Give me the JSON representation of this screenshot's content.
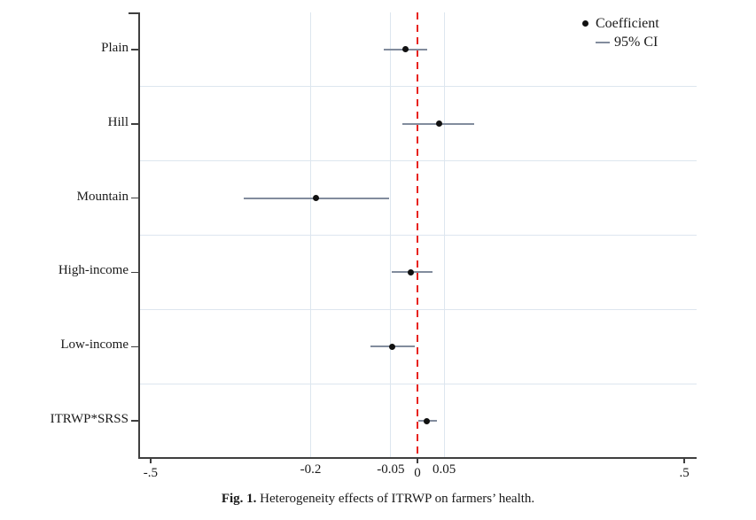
{
  "figure": {
    "caption": {
      "label": "Fig. 1.",
      "text": "Heterogeneity effects of ITRWP on farmers’ health."
    }
  },
  "legend": {
    "position": "top-right",
    "coefficient_label": "Coefficient",
    "ci_label": "95% CI",
    "ci_marker": "—",
    "coefficient_marker": "dot"
  },
  "colors": {
    "coefficient_dot": "#111111",
    "ci_line": "#828c9d",
    "zero_line": "#e8231f",
    "gridline": "#dde6ef",
    "axis": "#3f3f3f",
    "text": "#1a1a1a",
    "background": "#ffffff"
  },
  "chart_data": {
    "type": "scatter",
    "subtype": "horizontal-coefficient-plot-with-95ci",
    "title": "",
    "xlabel": "",
    "ylabel": "",
    "grid": "on",
    "xlim": [
      -0.523,
      0.523
    ],
    "reference_line_x": 0,
    "categories": [
      "Plain",
      "Hill",
      "Mountain",
      "High-income",
      "Low-income",
      "ITRWP*SRSS"
    ],
    "rows": [
      {
        "category": "Plain",
        "coefficient": -0.023,
        "ci_low": -0.063,
        "ci_high": 0.018
      },
      {
        "category": "Hill",
        "coefficient": 0.04,
        "ci_low": -0.028,
        "ci_high": 0.106
      },
      {
        "category": "Mountain",
        "coefficient": -0.19,
        "ci_low": -0.326,
        "ci_high": -0.053
      },
      {
        "category": "High-income",
        "coefficient": -0.012,
        "ci_low": -0.048,
        "ci_high": 0.028
      },
      {
        "category": "Low-income",
        "coefficient": -0.048,
        "ci_low": -0.088,
        "ci_high": -0.005
      },
      {
        "category": "ITRWP*SRSS",
        "coefficient": 0.018,
        "ci_low": 0.002,
        "ci_high": 0.037
      }
    ],
    "x_axis_ticks": [
      {
        "value": -0.5,
        "label": "-.5",
        "tick": true,
        "gridline": false
      },
      {
        "value": -0.2,
        "label": "-0.2",
        "tick": false,
        "gridline": true
      },
      {
        "value": -0.05,
        "label": "-0.05",
        "tick": false,
        "gridline": true
      },
      {
        "value": 0,
        "label": "0",
        "tick": true,
        "gridline": false
      },
      {
        "value": 0.05,
        "label": "0.05",
        "tick": false,
        "gridline": true
      },
      {
        "value": 0.5,
        "label": ".5",
        "tick": true,
        "gridline": false
      }
    ]
  }
}
